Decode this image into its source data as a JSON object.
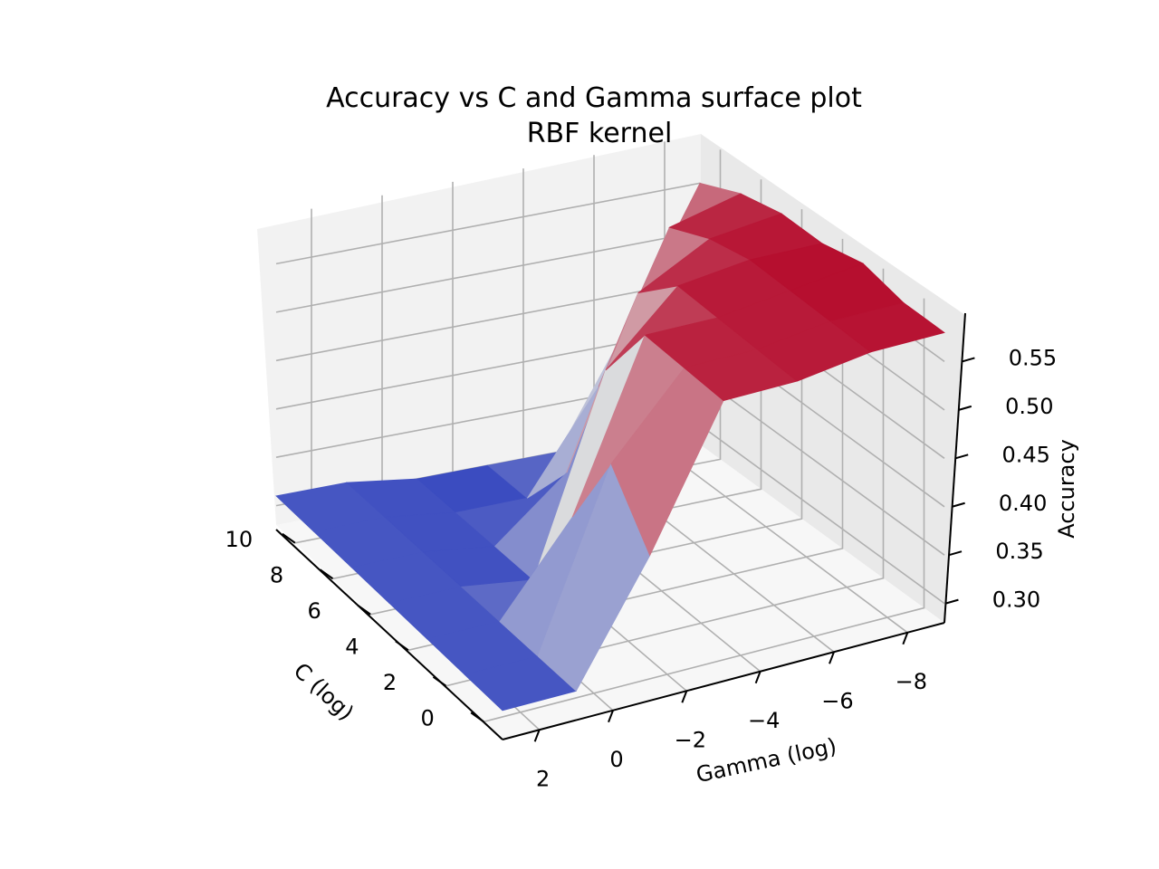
{
  "chart_data": {
    "type": "surface",
    "title": "Accuracy vs C and Gamma surface plot",
    "subtitle": "RBF kernel",
    "xlabel": "C (log)",
    "ylabel": "Gamma (log)",
    "zlabel": "Accuracy",
    "x_ticks": [
      "0",
      "2",
      "4",
      "6",
      "8",
      "10"
    ],
    "y_ticks": [
      "2",
      "0",
      "−2",
      "−4",
      "−6",
      "−8"
    ],
    "z_ticks": [
      "0.30",
      "0.35",
      "0.40",
      "0.45",
      "0.50",
      "0.55"
    ],
    "grid": true,
    "colormap": "coolwarm",
    "colors": {
      "low": "#3b4cc0",
      "mid": "#dddddd",
      "high": "#b40426"
    },
    "C_values": [
      -1,
      1,
      3,
      5,
      7,
      9,
      11
    ],
    "gamma_values": [
      3,
      1,
      -1,
      -3,
      -5,
      -7,
      -9
    ],
    "accuracy": [
      [
        0.31,
        0.31,
        0.43,
        0.57,
        0.57,
        0.58,
        0.58
      ],
      [
        0.31,
        0.31,
        0.49,
        0.57,
        0.57,
        0.58,
        0.58
      ],
      [
        0.31,
        0.31,
        0.4,
        0.57,
        0.57,
        0.58,
        0.59
      ],
      [
        0.31,
        0.31,
        0.3,
        0.5,
        0.57,
        0.58,
        0.58
      ],
      [
        0.31,
        0.31,
        0.3,
        0.36,
        0.53,
        0.57,
        0.58
      ],
      [
        0.31,
        0.31,
        0.3,
        0.3,
        0.4,
        0.55,
        0.57
      ],
      [
        0.31,
        0.31,
        0.3,
        0.3,
        0.3,
        0.42,
        0.55
      ]
    ]
  }
}
